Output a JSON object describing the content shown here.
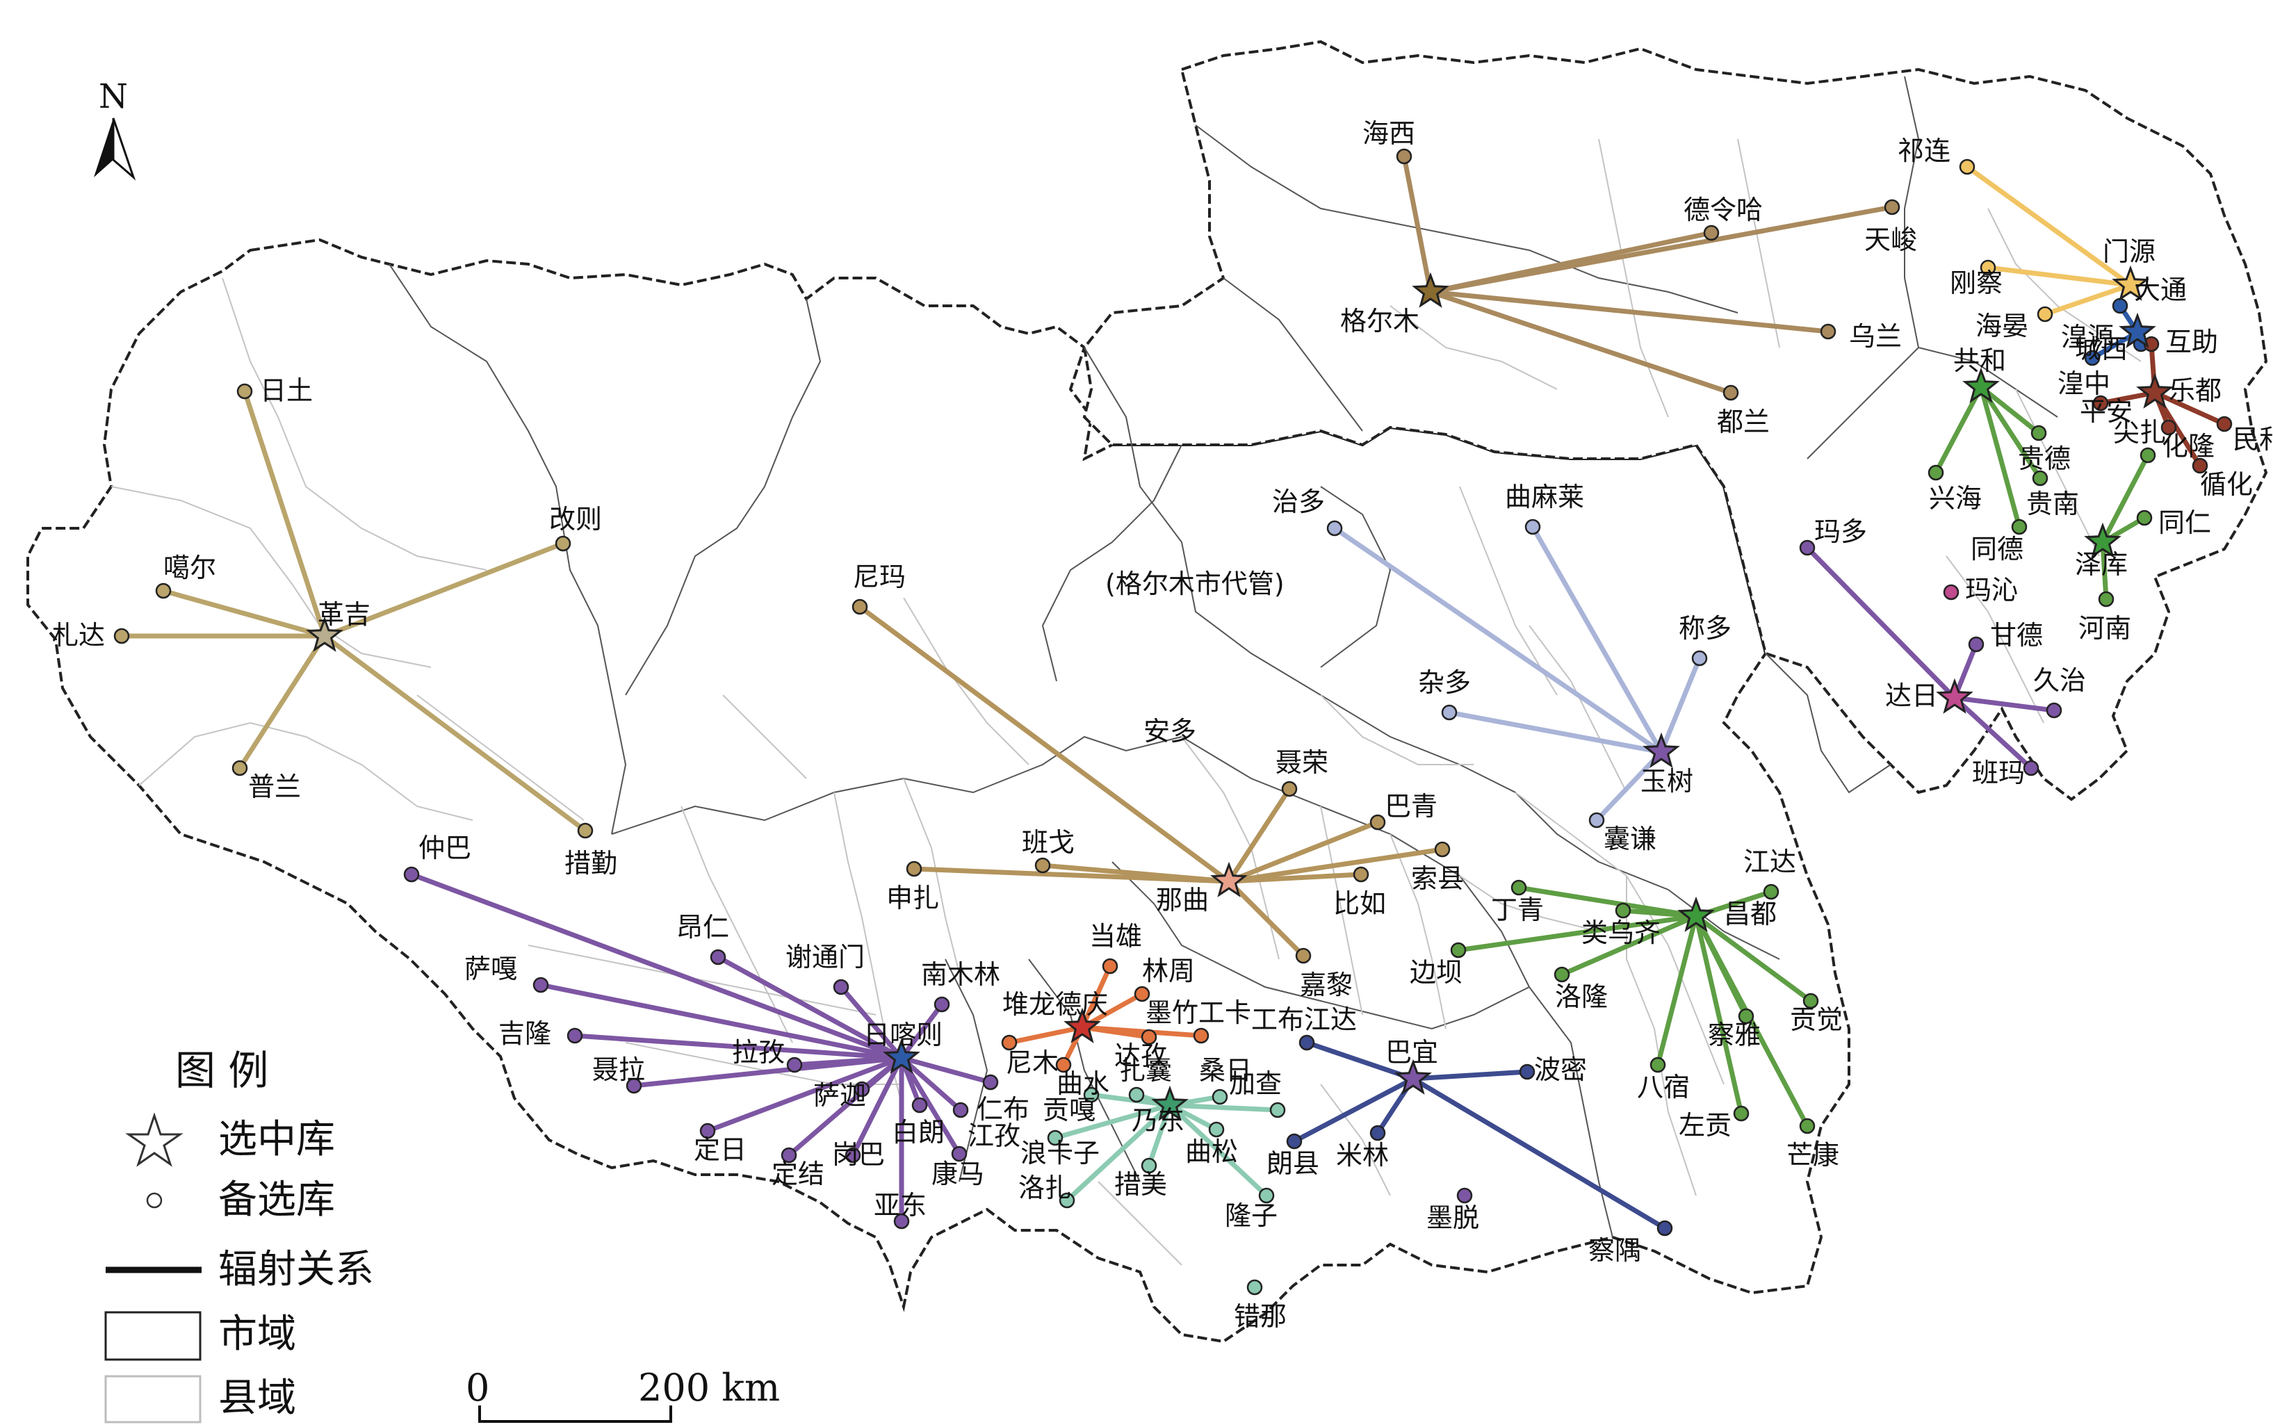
{
  "north_label": "N",
  "legend": {
    "title": "图 例",
    "selected": "选中库",
    "candidate": "备选库",
    "radiation": "辐射关系",
    "city": "市域",
    "county": "县域"
  },
  "scale": {
    "zero": "0",
    "distance": "200 km"
  },
  "region_labels": [
    "(格尔木市代管)",
    "安多"
  ],
  "colors": {
    "gold": "#b9a46b",
    "brown": "#a98a5e",
    "ochre": "#b3945c",
    "yellow": "#f1c463",
    "blue": "#2d5aa6",
    "darkred": "#8e3a2a",
    "green": "#5e9e44",
    "lavender": "#a9b4d8",
    "purple": "#7d56a3",
    "navy": "#3d4b8f",
    "orange": "#e2743f",
    "teal": "#8ccbb2",
    "magenta": "#c04b8e",
    "pink": "#e8a08a"
  },
  "hubs": [
    {
      "name": "革吉",
      "color": "gold",
      "star": "#b8ad8e",
      "targets": [
        "日土",
        "改则",
        "噶尔",
        "札达",
        "普兰",
        "措勤"
      ]
    },
    {
      "name": "格尔木",
      "color": "brown",
      "star": "#8a6b2f",
      "targets": [
        "海西",
        "德令哈",
        "天峻",
        "乌兰",
        "都兰"
      ]
    },
    {
      "name": "门源",
      "color": "yellow",
      "star": "#f1c463",
      "targets": [
        "祁连",
        "刚察",
        "海晏"
      ]
    },
    {
      "name": "湟源",
      "color": "blue",
      "star": "#2d5aa6",
      "targets": [
        "大通",
        "城西",
        "湟中"
      ]
    },
    {
      "name": "乐都",
      "color": "darkred",
      "star": "#8e3a2a",
      "targets": [
        "互助",
        "平安",
        "民和",
        "化隆",
        "循化"
      ]
    },
    {
      "name": "共和",
      "color": "green",
      "star": "#3d9a3a",
      "targets": [
        "兴海",
        "贵德",
        "贵南",
        "同德"
      ]
    },
    {
      "name": "泽库",
      "color": "green",
      "star": "#3d9a3a",
      "targets": [
        "同仁",
        "尖扎",
        "河南"
      ]
    },
    {
      "name": "达日",
      "color": "purple",
      "star": "#c04b8e",
      "targets": [
        "玛多",
        "甘德",
        "久治",
        "班玛"
      ]
    },
    {
      "name": "玉树",
      "color": "lavender",
      "star": "#7d56a3",
      "targets": [
        "治多",
        "曲麻莱",
        "称多",
        "杂多",
        "囊谦"
      ]
    },
    {
      "name": "那曲",
      "color": "ochre",
      "star": "#e8a08a",
      "targets": [
        "尼玛",
        "聂荣",
        "巴青",
        "索县",
        "比如",
        "嘉黎",
        "班戈",
        "申扎"
      ]
    },
    {
      "name": "昌都",
      "color": "green",
      "star": "#3d9a3a",
      "targets": [
        "江达",
        "丁青",
        "类乌齐",
        "边坝",
        "洛隆",
        "八宿",
        "察雅",
        "贡觉",
        "左贡",
        "芒康"
      ]
    },
    {
      "name": "日喀则",
      "color": "purple",
      "star": "#2d5aa6",
      "targets": [
        "仲巴",
        "萨嘎",
        "吉隆",
        "聂拉",
        "昂仁",
        "谢通门",
        "拉孜",
        "定日",
        "南木林",
        "萨迦",
        "定结",
        "岗巴",
        "白朗",
        "仁布",
        "江孜",
        "康马",
        "亚东"
      ]
    },
    {
      "name": "堆龙德庆",
      "color": "orange",
      "star": "#c8332e",
      "targets": [
        "当雄",
        "林周",
        "墨竹工卡",
        "尼木",
        "曲水",
        "达孜"
      ]
    },
    {
      "name": "巴宜",
      "color": "navy",
      "star": "#7d56a3",
      "targets": [
        "工布江达",
        "波密",
        "朗县",
        "米林",
        "察隅"
      ]
    },
    {
      "name": "乃东",
      "color": "teal",
      "star": "#3d9a6a",
      "targets": [
        "扎囊",
        "桑日",
        "加查",
        "贡嘎",
        "浪卡子",
        "曲松",
        "措美",
        "洛扎",
        "隆子"
      ]
    }
  ],
  "standalone": [
    "玛沁",
    "墨脱",
    "错那"
  ]
}
